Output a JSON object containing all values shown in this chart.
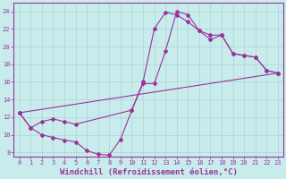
{
  "xlabel": "Windchill (Refroidissement éolien,°C)",
  "bg_color": "#c8ecec",
  "line_color": "#993399",
  "xlim": [
    -0.5,
    23.5
  ],
  "ylim": [
    7.5,
    25.0
  ],
  "xticks": [
    0,
    1,
    2,
    3,
    4,
    5,
    6,
    7,
    8,
    9,
    10,
    11,
    12,
    13,
    14,
    15,
    16,
    17,
    18,
    19,
    20,
    21,
    22,
    23
  ],
  "yticks": [
    8,
    10,
    12,
    14,
    16,
    18,
    20,
    22,
    24
  ],
  "line1_x": [
    0,
    1,
    2,
    3,
    4,
    5,
    6,
    7,
    8,
    9,
    10,
    11,
    12,
    13,
    14,
    15,
    16,
    17,
    18,
    19,
    20,
    21,
    22,
    23
  ],
  "line1_y": [
    12.5,
    10.8,
    10.0,
    9.7,
    9.4,
    9.2,
    8.2,
    7.8,
    7.7,
    9.5,
    12.8,
    16.0,
    22.0,
    23.9,
    23.6,
    22.8,
    21.8,
    21.3,
    21.3,
    19.2,
    19.0,
    18.8,
    17.3,
    17.0
  ],
  "line2_x": [
    0,
    1,
    2,
    3,
    4,
    5,
    10,
    11,
    12,
    13,
    14,
    15,
    16,
    17,
    18,
    19,
    20,
    21,
    22,
    23
  ],
  "line2_y": [
    12.5,
    10.8,
    11.5,
    11.8,
    11.5,
    11.2,
    12.8,
    15.8,
    15.8,
    19.5,
    24.0,
    23.6,
    21.8,
    20.8,
    21.3,
    19.2,
    19.0,
    18.8,
    17.3,
    17.0
  ],
  "line3_x": [
    0,
    23
  ],
  "line3_y": [
    12.5,
    17.0
  ],
  "grid_color": "#aad4d4",
  "marker": "D",
  "marker_size": 2.0,
  "linewidth": 0.8,
  "xlabel_fontsize": 6.5,
  "tick_fontsize": 5.0,
  "xlabel_color": "#993399",
  "tick_color": "#993399",
  "spine_color": "#993399"
}
